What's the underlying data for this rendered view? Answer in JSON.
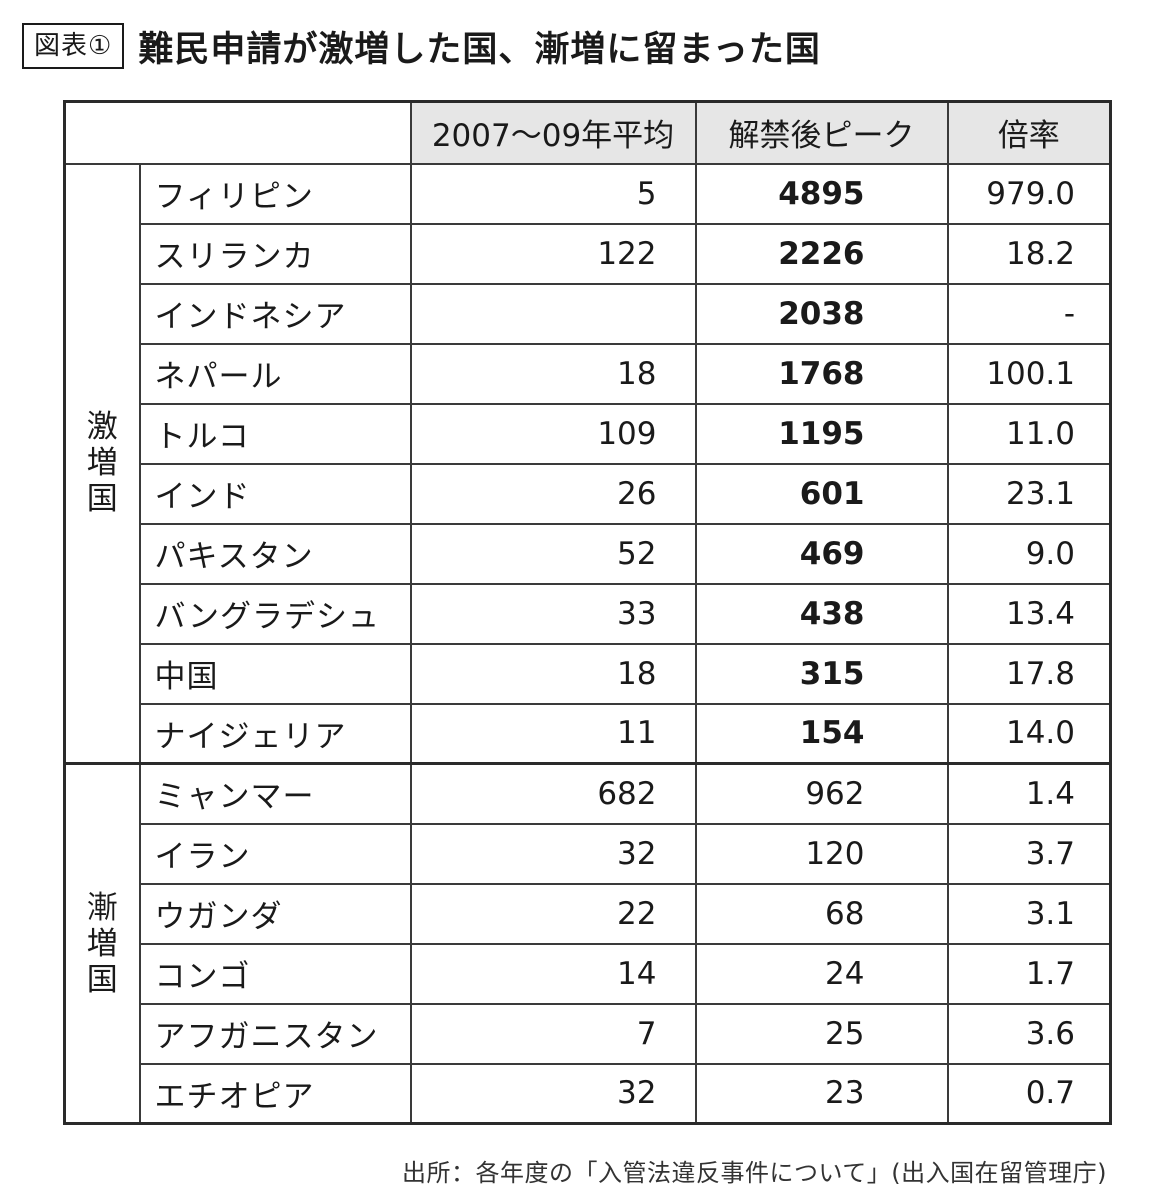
{
  "header": {
    "label": "図表①",
    "title": "難民申請が激増した国、漸増に留まった国"
  },
  "table": {
    "columns": [
      "2007〜09年平均",
      "解禁後ピーク",
      "倍率"
    ],
    "groups": [
      {
        "name": [
          "激",
          "増",
          "国"
        ],
        "rows": [
          {
            "country": "フィリピン",
            "avg": "5",
            "peak": "4895",
            "ratio": "979.0"
          },
          {
            "country": "スリランカ",
            "avg": "122",
            "peak": "2226",
            "ratio": "18.2"
          },
          {
            "country": "インドネシア",
            "avg": "",
            "peak": "2038",
            "ratio": "-"
          },
          {
            "country": "ネパール",
            "avg": "18",
            "peak": "1768",
            "ratio": "100.1"
          },
          {
            "country": "トルコ",
            "avg": "109",
            "peak": "1195",
            "ratio": "11.0"
          },
          {
            "country": "インド",
            "avg": "26",
            "peak": "601",
            "ratio": "23.1"
          },
          {
            "country": "パキスタン",
            "avg": "52",
            "peak": "469",
            "ratio": "9.0"
          },
          {
            "country": "バングラデシュ",
            "avg": "33",
            "peak": "438",
            "ratio": "13.4"
          },
          {
            "country": "中国",
            "avg": "18",
            "peak": "315",
            "ratio": "17.8"
          },
          {
            "country": "ナイジェリア",
            "avg": "11",
            "peak": "154",
            "ratio": "14.0"
          }
        ]
      },
      {
        "name": [
          "漸",
          "増",
          "国"
        ],
        "rows": [
          {
            "country": "ミャンマー",
            "avg": "682",
            "peak": "962",
            "ratio": "1.4"
          },
          {
            "country": "イラン",
            "avg": "32",
            "peak": "120",
            "ratio": "3.7"
          },
          {
            "country": "ウガンダ",
            "avg": "22",
            "peak": "68",
            "ratio": "3.1"
          },
          {
            "country": "コンゴ",
            "avg": "14",
            "peak": "24",
            "ratio": "1.7"
          },
          {
            "country": "アフガニスタン",
            "avg": "7",
            "peak": "25",
            "ratio": "3.6"
          },
          {
            "country": "エチオピア",
            "avg": "32",
            "peak": "23",
            "ratio": "0.7"
          }
        ]
      }
    ]
  },
  "source": "出所：各年度の「入管法違反事件について」(出入国在留管理庁)"
}
